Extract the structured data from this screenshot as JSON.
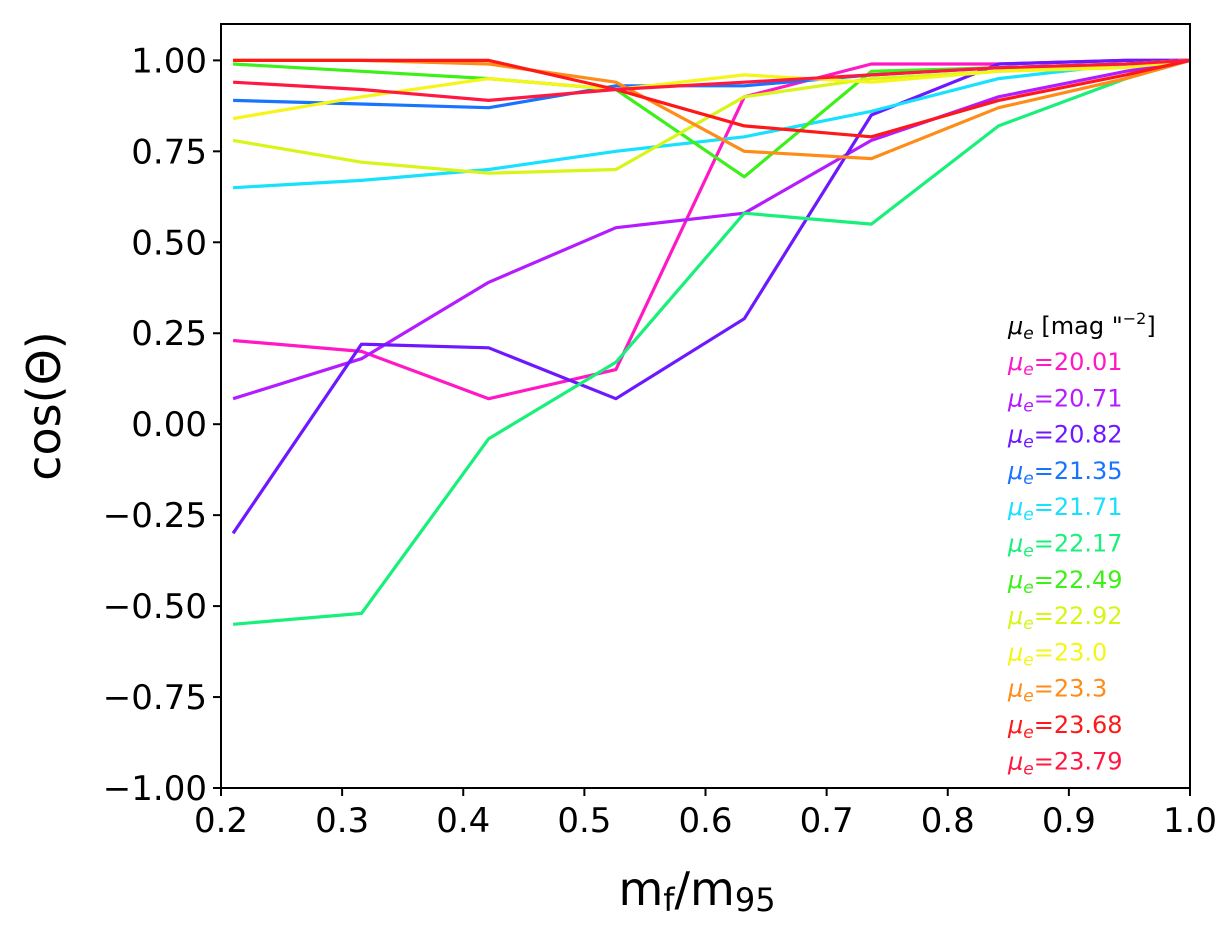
{
  "chart_data": {
    "type": "line",
    "title": "",
    "xlabel": "m_f/m_95",
    "xlabel_main": "m",
    "xlabel_sub1": "f",
    "xlabel_mid": "/m",
    "xlabel_sub2": "95",
    "ylabel": "cos(Θ)",
    "xlim": [
      0.2,
      1.0
    ],
    "ylim": [
      -1.0,
      1.1
    ],
    "xticks": [
      0.2,
      0.3,
      0.4,
      0.5,
      0.6,
      0.7,
      0.8,
      0.9,
      1.0
    ],
    "xtick_labels": [
      "0.2",
      "0.3",
      "0.4",
      "0.5",
      "0.6",
      "0.7",
      "0.8",
      "0.9",
      "1.0"
    ],
    "yticks": [
      -1.0,
      -0.75,
      -0.5,
      -0.25,
      0.0,
      0.25,
      0.5,
      0.75,
      1.0
    ],
    "ytick_labels": [
      "−1.00",
      "−0.75",
      "−0.50",
      "−0.25",
      "0.00",
      "0.25",
      "0.50",
      "0.75",
      "1.00"
    ],
    "grid": false,
    "legend_title": "μe [mag \"−2]",
    "legend_title_mu": "μ",
    "legend_title_sub": "e",
    "legend_title_rest": " [mag \"",
    "legend_title_sup": "−2",
    "legend_title_end": "]",
    "legend_mu": "μ",
    "legend_sub": "e",
    "legend_position": "center-right",
    "x": [
      0.21,
      0.316,
      0.421,
      0.526,
      0.632,
      0.737,
      0.842,
      0.947,
      1.0
    ],
    "series": [
      {
        "name": "μe=20.01",
        "value": "=20.01",
        "color": "#ff18c4",
        "values": [
          0.23,
          0.2,
          0.07,
          0.15,
          0.9,
          0.99,
          0.99,
          1.0,
          1.0
        ]
      },
      {
        "name": "μe=20.71",
        "value": "=20.71",
        "color": "#b41cff",
        "values": [
          0.07,
          0.18,
          0.39,
          0.54,
          0.58,
          0.78,
          0.9,
          0.97,
          1.0
        ]
      },
      {
        "name": "μe=20.82",
        "value": "=20.82",
        "color": "#6d18ff",
        "values": [
          -0.3,
          0.22,
          0.21,
          0.07,
          0.29,
          0.85,
          0.99,
          1.0,
          1.0
        ]
      },
      {
        "name": "μe=21.35",
        "value": "=21.35",
        "color": "#1873ff",
        "values": [
          0.89,
          0.88,
          0.87,
          0.93,
          0.93,
          0.96,
          0.98,
          0.99,
          1.0
        ]
      },
      {
        "name": "μe=21.71",
        "value": "=21.71",
        "color": "#18e0ff",
        "values": [
          0.65,
          0.67,
          0.7,
          0.75,
          0.79,
          0.86,
          0.95,
          0.99,
          1.0
        ]
      },
      {
        "name": "μe=22.17",
        "value": "=22.17",
        "color": "#18f07a",
        "values": [
          -0.55,
          -0.52,
          -0.04,
          0.17,
          0.58,
          0.55,
          0.82,
          0.95,
          1.0
        ]
      },
      {
        "name": "μe=22.49",
        "value": "=22.49",
        "color": "#3cf018",
        "values": [
          0.99,
          0.97,
          0.95,
          0.92,
          0.68,
          0.97,
          0.98,
          0.99,
          1.0
        ]
      },
      {
        "name": "μe=22.92",
        "value": "=22.92",
        "color": "#d8f518",
        "values": [
          0.78,
          0.72,
          0.69,
          0.7,
          0.9,
          0.95,
          0.97,
          0.99,
          1.0
        ]
      },
      {
        "name": "μe=23.0",
        "value": "=23.0",
        "color": "#f5f518",
        "values": [
          0.84,
          0.9,
          0.95,
          0.92,
          0.96,
          0.94,
          0.97,
          0.98,
          1.0
        ]
      },
      {
        "name": "μe=23.3",
        "value": "=23.3",
        "color": "#ff8c18",
        "values": [
          1.0,
          1.0,
          0.99,
          0.94,
          0.75,
          0.73,
          0.87,
          0.95,
          1.0
        ]
      },
      {
        "name": "μe=23.68",
        "value": "=23.68",
        "color": "#ff1818",
        "values": [
          1.0,
          1.0,
          1.0,
          0.92,
          0.82,
          0.79,
          0.89,
          0.96,
          1.0
        ]
      },
      {
        "name": "μe=23.79",
        "value": "=23.79",
        "color": "#ff1840",
        "values": [
          0.94,
          0.92,
          0.89,
          0.92,
          0.94,
          0.96,
          0.98,
          0.99,
          1.0
        ]
      }
    ]
  }
}
